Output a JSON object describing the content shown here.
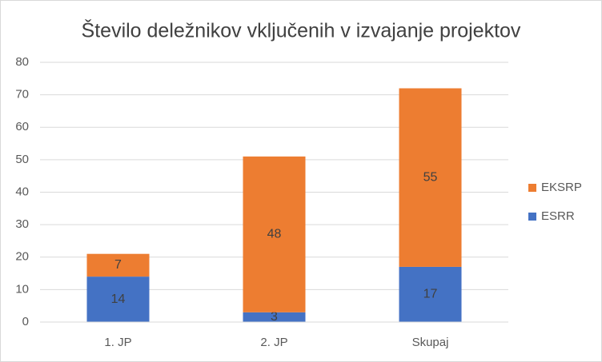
{
  "chart_data": {
    "type": "stacked_bar",
    "title": "Število deležnikov vključenih v izvajanje projektov",
    "categories": [
      "1. JP",
      "2. JP",
      "Skupaj"
    ],
    "series": [
      {
        "name": "ESRR",
        "color": "#4472c4",
        "values": [
          14,
          3,
          17
        ]
      },
      {
        "name": "EKSRP",
        "color": "#ed7d31",
        "values": [
          7,
          48,
          55
        ]
      }
    ],
    "ylim": [
      0,
      80
    ],
    "yticks": [
      0,
      10,
      20,
      30,
      40,
      50,
      60,
      70,
      80
    ],
    "grid": true,
    "legend": "right"
  }
}
